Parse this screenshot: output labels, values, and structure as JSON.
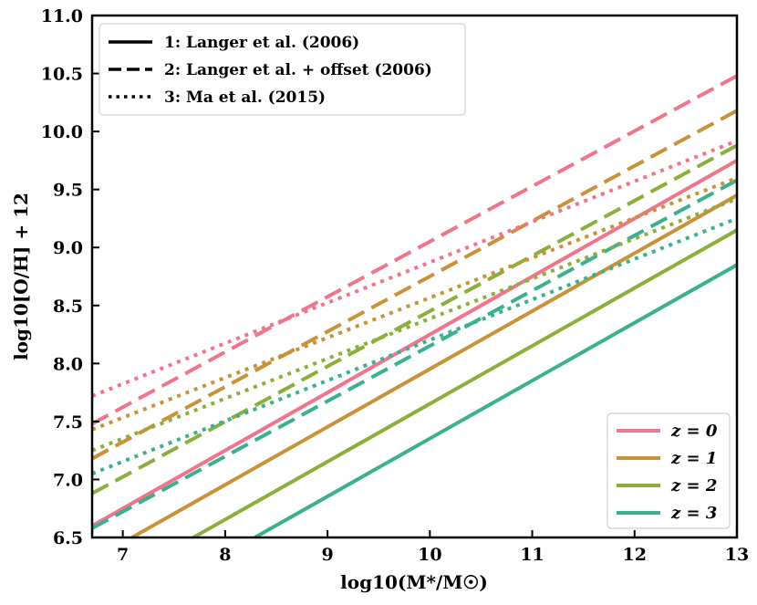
{
  "chart_data": {
    "type": "line",
    "title": "",
    "xlabel": "log10(M*/M☉)",
    "ylabel": "log10[O/H] + 12",
    "xlim": [
      6.7,
      13
    ],
    "ylim": [
      6.5,
      11
    ],
    "xticks": [
      7,
      8,
      9,
      10,
      11,
      12,
      13
    ],
    "yticks": [
      6.5,
      7.0,
      7.5,
      8.0,
      8.5,
      9.0,
      9.5,
      10.0,
      10.5,
      11.0
    ],
    "ytick_labels": [
      "6.5",
      "7.0",
      "7.5",
      "8.0",
      "8.5",
      "9.0",
      "9.5",
      "10.0",
      "10.5",
      "11.0"
    ],
    "xtick_labels": [
      "7",
      "8",
      "9",
      "10",
      "11",
      "12",
      "13"
    ],
    "colors": {
      "z0": "#f0758a",
      "z1": "#c99239",
      "z2": "#8cae3b",
      "z3": "#3bb08f"
    },
    "style_legend": {
      "position": "top-left",
      "entries": [
        {
          "style": "solid",
          "label": "1: Langer et al. (2006)"
        },
        {
          "style": "dashed",
          "label": "2: Langer et al. + offset (2006)"
        },
        {
          "style": "dotted",
          "label": "3: Ma et al. (2015)"
        }
      ]
    },
    "color_legend": {
      "position": "bottom-right",
      "entries": [
        {
          "key": "z0",
          "label": "z = 0"
        },
        {
          "key": "z1",
          "label": "z = 1"
        },
        {
          "key": "z2",
          "label": "z = 2"
        },
        {
          "key": "z3",
          "label": "z = 3"
        }
      ]
    },
    "series": [
      {
        "name": "1: Langer et al. (2006), z = 0",
        "style": "solid",
        "color_key": "z0",
        "x": [
          6.7,
          13
        ],
        "y": [
          6.6,
          9.75
        ]
      },
      {
        "name": "1: Langer et al. (2006), z = 1",
        "style": "solid",
        "color_key": "z1",
        "x": [
          7.09,
          13
        ],
        "y": [
          6.5,
          9.45
        ]
      },
      {
        "name": "1: Langer et al. (2006), z = 2",
        "style": "solid",
        "color_key": "z2",
        "x": [
          7.69,
          13
        ],
        "y": [
          6.5,
          9.15
        ]
      },
      {
        "name": "1: Langer et al. (2006), z = 3",
        "style": "solid",
        "color_key": "z3",
        "x": [
          8.29,
          13
        ],
        "y": [
          6.5,
          8.85
        ]
      },
      {
        "name": "2: Langer et al. + offset (2006), z = 0",
        "style": "dashed",
        "color_key": "z0",
        "x": [
          6.7,
          13
        ],
        "y": [
          7.48,
          10.48
        ]
      },
      {
        "name": "2: Langer et al. + offset (2006), z = 1",
        "style": "dashed",
        "color_key": "z1",
        "x": [
          6.7,
          13
        ],
        "y": [
          7.18,
          10.18
        ]
      },
      {
        "name": "2: Langer et al. + offset (2006), z = 2",
        "style": "dashed",
        "color_key": "z2",
        "x": [
          6.7,
          13
        ],
        "y": [
          6.88,
          9.88
        ]
      },
      {
        "name": "2: Langer et al. + offset (2006), z = 3",
        "style": "dashed",
        "color_key": "z3",
        "x": [
          6.7,
          13
        ],
        "y": [
          6.58,
          9.58
        ]
      },
      {
        "name": "3: Ma et al. (2015), z = 0",
        "style": "dotted",
        "color_key": "z0",
        "x": [
          6.7,
          13
        ],
        "y": [
          7.72,
          9.92
        ]
      },
      {
        "name": "3: Ma et al. (2015), z = 1",
        "style": "dotted",
        "color_key": "z1",
        "x": [
          6.7,
          13
        ],
        "y": [
          7.43,
          9.6
        ]
      },
      {
        "name": "3: Ma et al. (2015), z = 2",
        "style": "dotted",
        "color_key": "z2",
        "x": [
          6.7,
          13
        ],
        "y": [
          7.25,
          9.42
        ]
      },
      {
        "name": "3: Ma et al. (2015), z = 3",
        "style": "dotted",
        "color_key": "z3",
        "x": [
          6.7,
          13
        ],
        "y": [
          7.05,
          9.25
        ]
      }
    ]
  }
}
